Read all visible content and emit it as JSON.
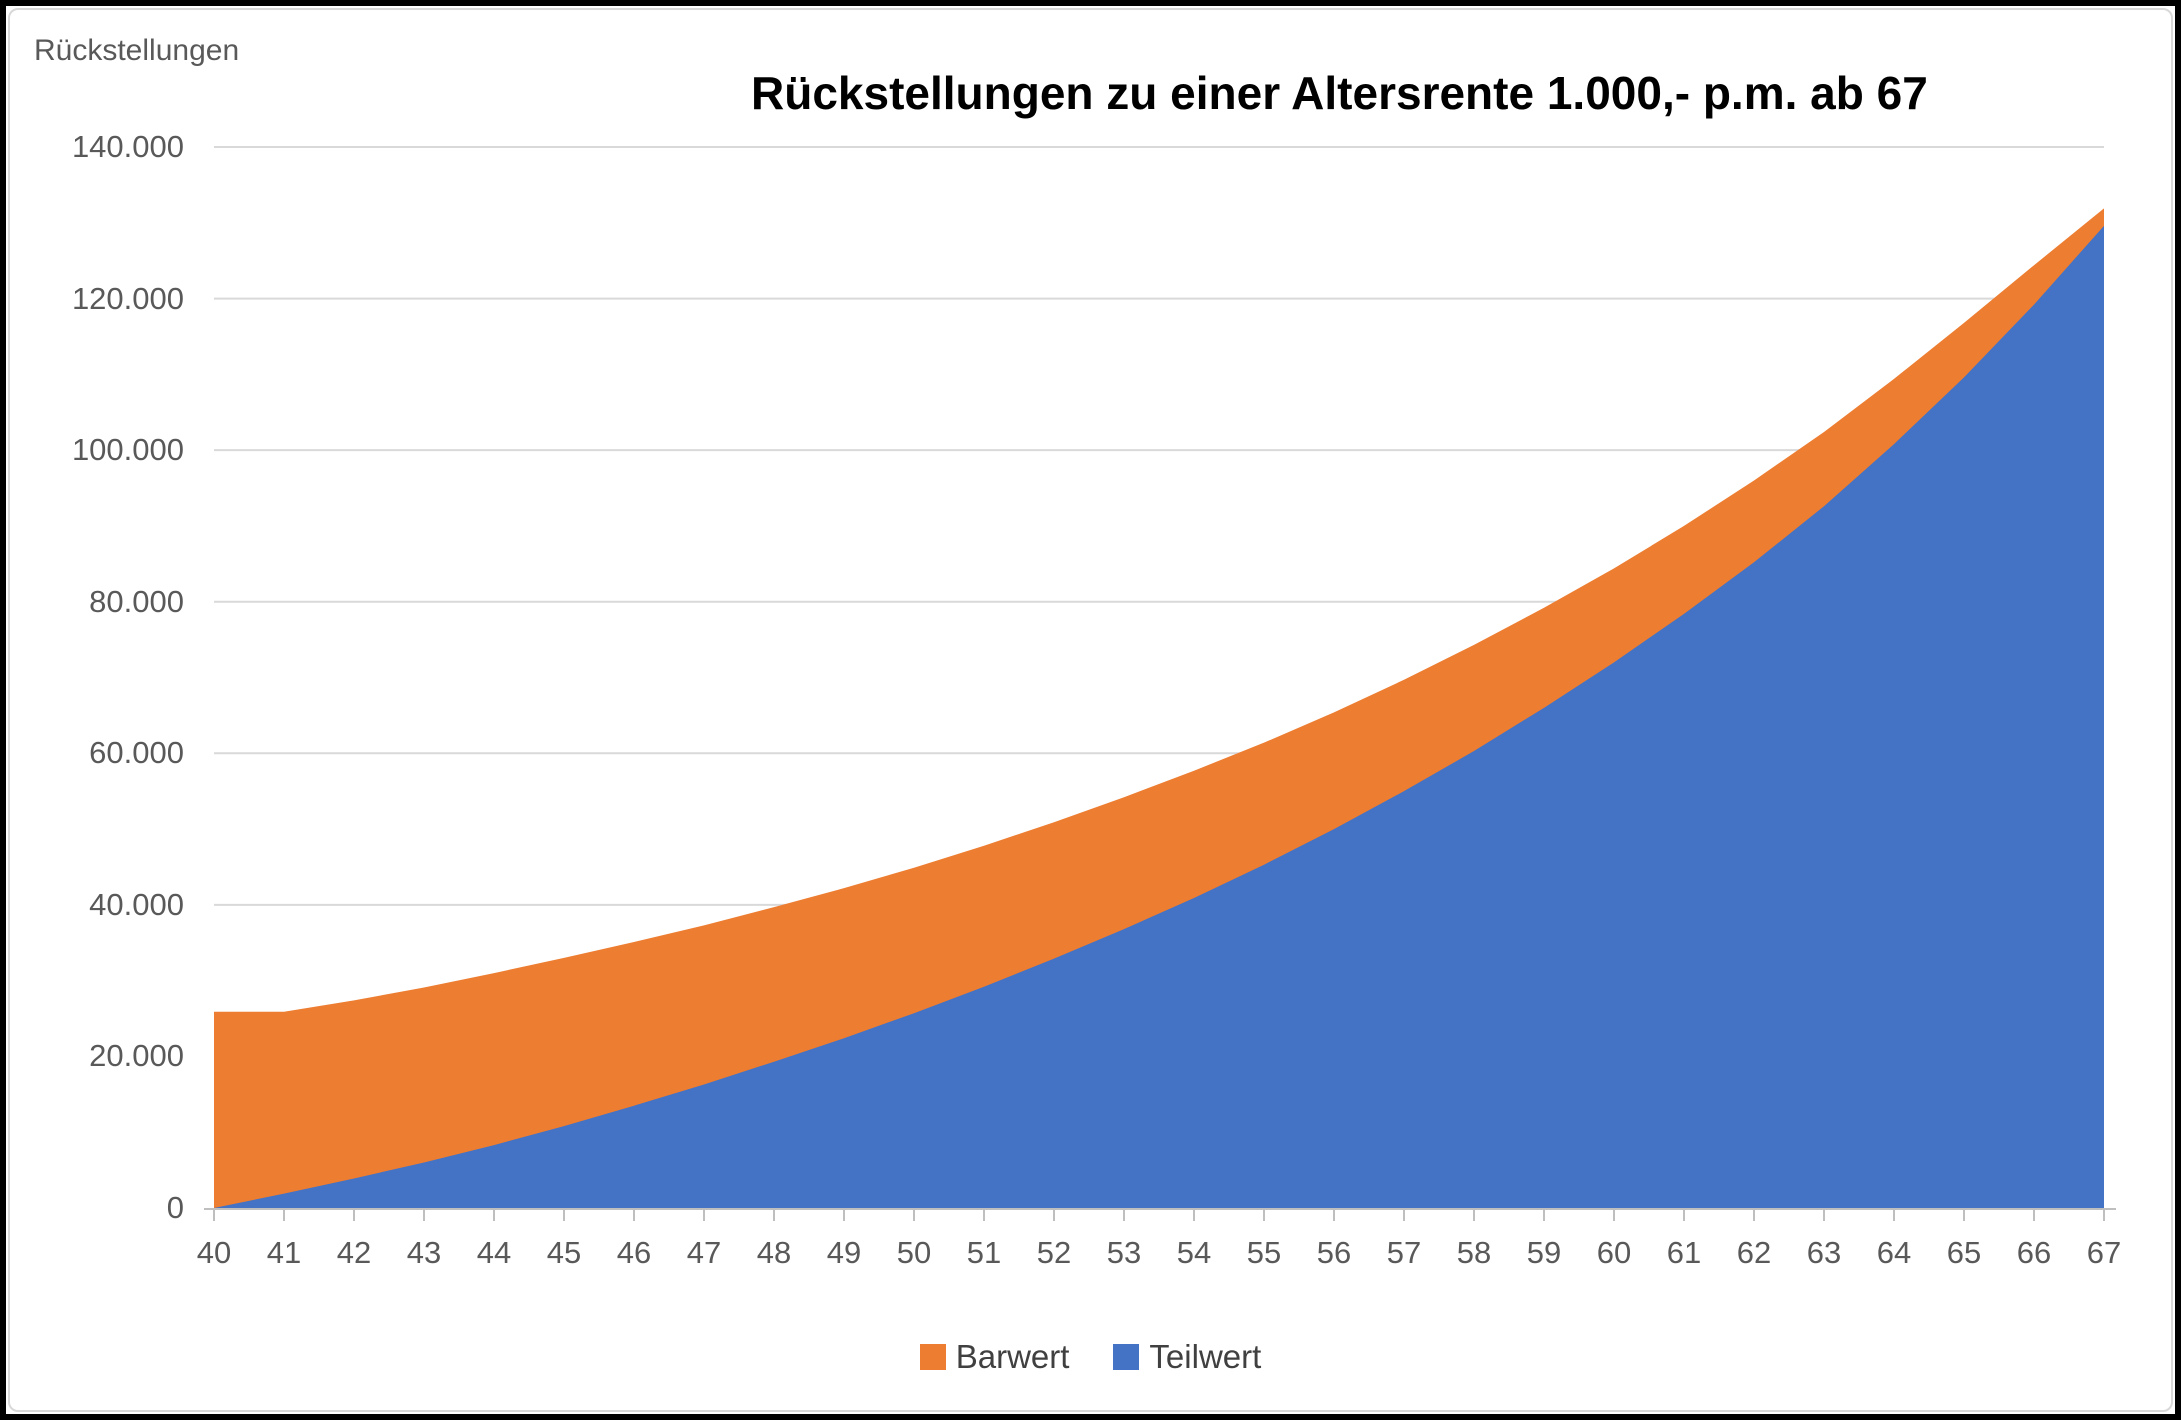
{
  "title": "Rückstellungen zu einer Altersrente 1.000,- p.m. ab 67",
  "y_axis": {
    "title": "Rückstellungen",
    "tick_labels": [
      "140.000",
      "120.000",
      "100.000",
      "80.000",
      "60.000",
      "40.000",
      "20.000",
      "0"
    ],
    "tick_values": [
      140000,
      120000,
      100000,
      80000,
      60000,
      40000,
      20000,
      0
    ]
  },
  "x_axis": {
    "ages": [
      40,
      41,
      42,
      43,
      44,
      45,
      46,
      47,
      48,
      49,
      50,
      51,
      52,
      53,
      54,
      55,
      56,
      57,
      58,
      59,
      60,
      61,
      62,
      63,
      64,
      65,
      66,
      67
    ]
  },
  "legend": [
    {
      "label": "Barwert",
      "color": "#ED7D31"
    },
    {
      "label": "Teilwert",
      "color": "#4472C4"
    }
  ],
  "colors": {
    "barwert": "#ED7D31",
    "teilwert": "#4472C4",
    "gridline": "#D9D9D9",
    "axis_line": "#BFBFBF",
    "axis_text": "#595959",
    "legend_text": "#404040",
    "outer_border": "#000000"
  },
  "chart_data": {
    "type": "area",
    "title": "Rückstellungen zu einer Altersrente 1.000,- p.m. ab 67",
    "xlabel": "",
    "ylabel": "Rückstellungen",
    "x": [
      40,
      41,
      42,
      43,
      44,
      45,
      46,
      47,
      48,
      49,
      50,
      51,
      52,
      53,
      54,
      55,
      56,
      57,
      58,
      59,
      60,
      61,
      62,
      63,
      64,
      65,
      66,
      67
    ],
    "series": [
      {
        "name": "Barwert",
        "color": "#ED7D31",
        "values": [
          25900,
          25900,
          27400,
          29100,
          31000,
          33000,
          35100,
          37300,
          39700,
          42200,
          44900,
          47800,
          50900,
          54200,
          57700,
          61400,
          65400,
          69700,
          74300,
          79200,
          84400,
          90000,
          96000,
          102400,
          109400,
          116800,
          124400,
          131900
        ]
      },
      {
        "name": "Teilwert",
        "color": "#4472C4",
        "values": [
          0,
          1900,
          3900,
          6000,
          8300,
          10800,
          13500,
          16300,
          19300,
          22400,
          25700,
          29200,
          32900,
          36800,
          40900,
          45300,
          50000,
          55000,
          60300,
          66000,
          72000,
          78400,
          85200,
          92600,
          100800,
          109600,
          119200,
          129600
        ]
      }
    ],
    "ylim": [
      0,
      140000
    ],
    "y_tick_step": 20000,
    "grid": true,
    "legend_position": "bottom",
    "draw_order_note": "Barwert area drawn first, Teilwert area overlaps it from below"
  }
}
